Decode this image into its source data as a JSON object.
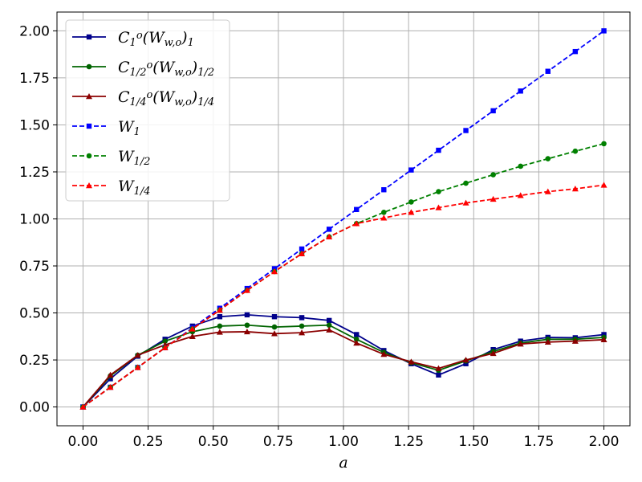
{
  "chart_data": {
    "type": "line",
    "xlabel": "a",
    "ylabel": "",
    "xlim": [
      -0.1,
      2.1
    ],
    "ylim": [
      -0.1,
      2.1
    ],
    "grid": true,
    "legend_placement": "top-left",
    "x": [
      0.0,
      0.105,
      0.21,
      0.315,
      0.42,
      0.525,
      0.63,
      0.735,
      0.84,
      0.945,
      1.05,
      1.155,
      1.26,
      1.365,
      1.47,
      1.575,
      1.68,
      1.785,
      1.89,
      2.0
    ],
    "x_ticks": [
      "0.00",
      "0.25",
      "0.50",
      "0.75",
      "1.00",
      "1.25",
      "1.50",
      "1.75",
      "2.00"
    ],
    "y_ticks": [
      "0.00",
      "0.25",
      "0.50",
      "0.75",
      "1.00",
      "1.25",
      "1.50",
      "1.75",
      "2.00"
    ],
    "series": [
      {
        "name": "C_1^o(W_{w,o})_1",
        "color": "#00008b",
        "marker": "square",
        "dash": false,
        "values": [
          0.0,
          0.15,
          0.27,
          0.36,
          0.43,
          0.48,
          0.49,
          0.48,
          0.475,
          0.46,
          0.385,
          0.3,
          0.23,
          0.17,
          0.23,
          0.305,
          0.35,
          0.37,
          0.368,
          0.385
        ]
      },
      {
        "name": "C_{1/2}^o(W_{w,o})_{1/2}",
        "color": "#006400",
        "marker": "circle",
        "dash": false,
        "values": [
          0.0,
          0.165,
          0.275,
          0.35,
          0.4,
          0.43,
          0.435,
          0.425,
          0.43,
          0.435,
          0.36,
          0.29,
          0.235,
          0.195,
          0.245,
          0.295,
          0.34,
          0.36,
          0.36,
          0.37
        ]
      },
      {
        "name": "C_{1/4}^o(W_{w,o})_{1/4}",
        "color": "#8b0000",
        "marker": "triangle",
        "dash": false,
        "values": [
          0.0,
          0.17,
          0.275,
          0.33,
          0.375,
          0.398,
          0.4,
          0.39,
          0.395,
          0.41,
          0.34,
          0.28,
          0.24,
          0.205,
          0.25,
          0.285,
          0.335,
          0.345,
          0.35,
          0.358
        ]
      },
      {
        "name": "W_1",
        "color": "#0000ff",
        "marker": "square",
        "dash": true,
        "values": [
          0.0,
          0.105,
          0.21,
          0.315,
          0.42,
          0.525,
          0.63,
          0.735,
          0.84,
          0.945,
          1.05,
          1.155,
          1.26,
          1.365,
          1.47,
          1.575,
          1.68,
          1.785,
          1.89,
          2.0
        ]
      },
      {
        "name": "W_{1/2}",
        "color": "#008000",
        "marker": "circle",
        "dash": true,
        "values": [
          0.0,
          0.105,
          0.21,
          0.315,
          0.415,
          0.515,
          0.62,
          0.72,
          0.815,
          0.905,
          0.975,
          1.035,
          1.09,
          1.145,
          1.19,
          1.235,
          1.28,
          1.32,
          1.36,
          1.4
        ]
      },
      {
        "name": "W_{1/4}",
        "color": "#ff0000",
        "marker": "triangle",
        "dash": true,
        "values": [
          0.0,
          0.105,
          0.21,
          0.315,
          0.415,
          0.515,
          0.62,
          0.72,
          0.815,
          0.905,
          0.975,
          1.005,
          1.035,
          1.06,
          1.085,
          1.105,
          1.125,
          1.145,
          1.16,
          1.18
        ]
      }
    ]
  }
}
